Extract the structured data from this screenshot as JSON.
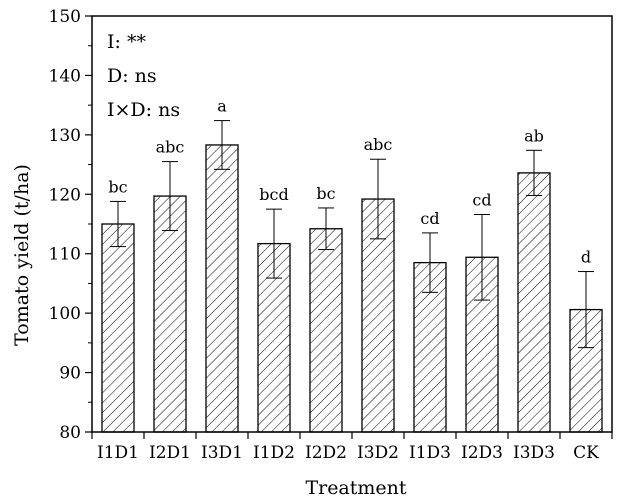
{
  "chart_data": {
    "type": "bar",
    "categories": [
      "I1D1",
      "I2D1",
      "I3D1",
      "I1D2",
      "I2D2",
      "I3D2",
      "I1D3",
      "I2D3",
      "I3D3",
      "CK"
    ],
    "values": [
      115.0,
      119.7,
      128.3,
      111.7,
      114.2,
      119.2,
      108.5,
      109.4,
      123.6,
      100.6
    ],
    "error": [
      3.8,
      5.8,
      4.1,
      5.8,
      3.5,
      6.7,
      5.0,
      7.2,
      3.8,
      6.4
    ],
    "significance_letters": [
      "bc",
      "abc",
      "a",
      "bcd",
      "bc",
      "abc",
      "cd",
      "cd",
      "ab",
      "d"
    ],
    "xlabel": "Treatment",
    "ylabel": "Tomato yield (t/ha)",
    "ylim": [
      80,
      150
    ],
    "yticks": [
      80,
      90,
      100,
      110,
      120,
      130,
      140,
      150
    ],
    "annotations": [
      "I: **",
      "D: ns",
      "I×D: ns"
    ],
    "bar_fill": "hatched",
    "grid": false,
    "colors": {
      "bar_stroke": "#000000",
      "hatch": "#000000",
      "background": "#ffffff"
    }
  }
}
